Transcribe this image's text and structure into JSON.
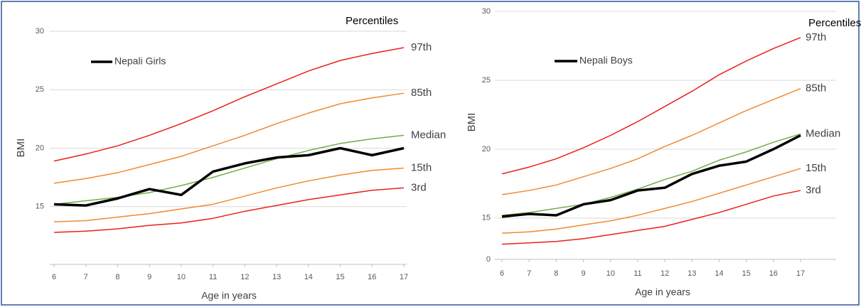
{
  "chart_data": [
    {
      "type": "line",
      "y_label": "BMI",
      "x_label": "Age in years",
      "legend_title": "Percentiles",
      "x": [
        6,
        7,
        8,
        9,
        10,
        11,
        12,
        13,
        14,
        15,
        16,
        17
      ],
      "xlim": [
        6,
        17
      ],
      "xticks": [
        6,
        7,
        8,
        9,
        10,
        11,
        12,
        13,
        14,
        15,
        16,
        17
      ],
      "ylim": [
        10,
        30
      ],
      "yticks": [
        15,
        20,
        25,
        30
      ],
      "grid": true,
      "series": [
        {
          "name": "97th",
          "color": "#e8201e",
          "label_at": "end",
          "values": [
            18.9,
            19.5,
            20.2,
            21.1,
            22.1,
            23.2,
            24.4,
            25.5,
            26.6,
            27.5,
            28.1,
            28.6
          ]
        },
        {
          "name": "85th",
          "color": "#f08a30",
          "label_at": "end",
          "values": [
            17.0,
            17.4,
            17.9,
            18.6,
            19.3,
            20.2,
            21.1,
            22.1,
            23.0,
            23.8,
            24.3,
            24.7
          ]
        },
        {
          "name": "Median",
          "color": "#70ad47",
          "label_at": "end",
          "values": [
            15.2,
            15.5,
            15.8,
            16.2,
            16.8,
            17.5,
            18.3,
            19.1,
            19.8,
            20.4,
            20.8,
            21.1
          ]
        },
        {
          "name": "15th",
          "color": "#f08a30",
          "label_at": "end",
          "values": [
            13.7,
            13.8,
            14.1,
            14.4,
            14.8,
            15.2,
            15.9,
            16.6,
            17.2,
            17.7,
            18.1,
            18.3
          ]
        },
        {
          "name": "3rd",
          "color": "#e8201e",
          "label_at": "end",
          "values": [
            12.8,
            12.9,
            13.1,
            13.4,
            13.6,
            14.0,
            14.6,
            15.1,
            15.6,
            16.0,
            16.4,
            16.6
          ]
        },
        {
          "name": "Nepali Girls",
          "color": "#000000",
          "label_at": "legend",
          "values": [
            15.2,
            15.1,
            15.7,
            16.5,
            16.0,
            18.0,
            18.7,
            19.2,
            19.4,
            20.0,
            19.4,
            20.0
          ]
        }
      ]
    },
    {
      "type": "line",
      "y_label": "BMI",
      "x_label": "Age in years",
      "legend_title": "Percentiles",
      "x": [
        6,
        7,
        8,
        9,
        10,
        11,
        12,
        13,
        14,
        15,
        16,
        17
      ],
      "xlim": [
        6,
        17
      ],
      "xticks": [
        6,
        7,
        8,
        9,
        10,
        11,
        12,
        13,
        14,
        15,
        16,
        17
      ],
      "ylim": [
        0,
        30
      ],
      "y_axis_break": [
        0,
        12
      ],
      "yticks": [
        0,
        15,
        20,
        25,
        30
      ],
      "grid": true,
      "series": [
        {
          "name": "97th",
          "color": "#e8201e",
          "label_at": "end",
          "values": [
            18.2,
            18.7,
            19.3,
            20.1,
            21.0,
            22.0,
            23.1,
            24.2,
            25.4,
            26.4,
            27.3,
            28.1
          ]
        },
        {
          "name": "85th",
          "color": "#f08a30",
          "label_at": "end",
          "values": [
            16.7,
            17.0,
            17.4,
            18.0,
            18.6,
            19.3,
            20.2,
            21.0,
            21.9,
            22.8,
            23.6,
            24.4
          ]
        },
        {
          "name": "Median",
          "color": "#70ad47",
          "label_at": "end",
          "values": [
            15.2,
            15.4,
            15.7,
            16.0,
            16.5,
            17.1,
            17.8,
            18.4,
            19.2,
            19.8,
            20.5,
            21.1
          ]
        },
        {
          "name": "15th",
          "color": "#f08a30",
          "label_at": "end",
          "values": [
            13.9,
            14.0,
            14.2,
            14.5,
            14.8,
            15.2,
            15.7,
            16.2,
            16.8,
            17.4,
            18.0,
            18.6
          ]
        },
        {
          "name": "3rd",
          "color": "#e8201e",
          "label_at": "end",
          "values": [
            13.1,
            13.2,
            13.3,
            13.5,
            13.8,
            14.1,
            14.4,
            14.9,
            15.4,
            16.0,
            16.6,
            17.0
          ]
        },
        {
          "name": "Nepali Boys",
          "color": "#000000",
          "label_at": "legend",
          "values": [
            15.1,
            15.3,
            15.2,
            16.0,
            16.3,
            17.0,
            17.2,
            18.2,
            18.8,
            19.1,
            20.0,
            21.0
          ]
        }
      ]
    }
  ]
}
